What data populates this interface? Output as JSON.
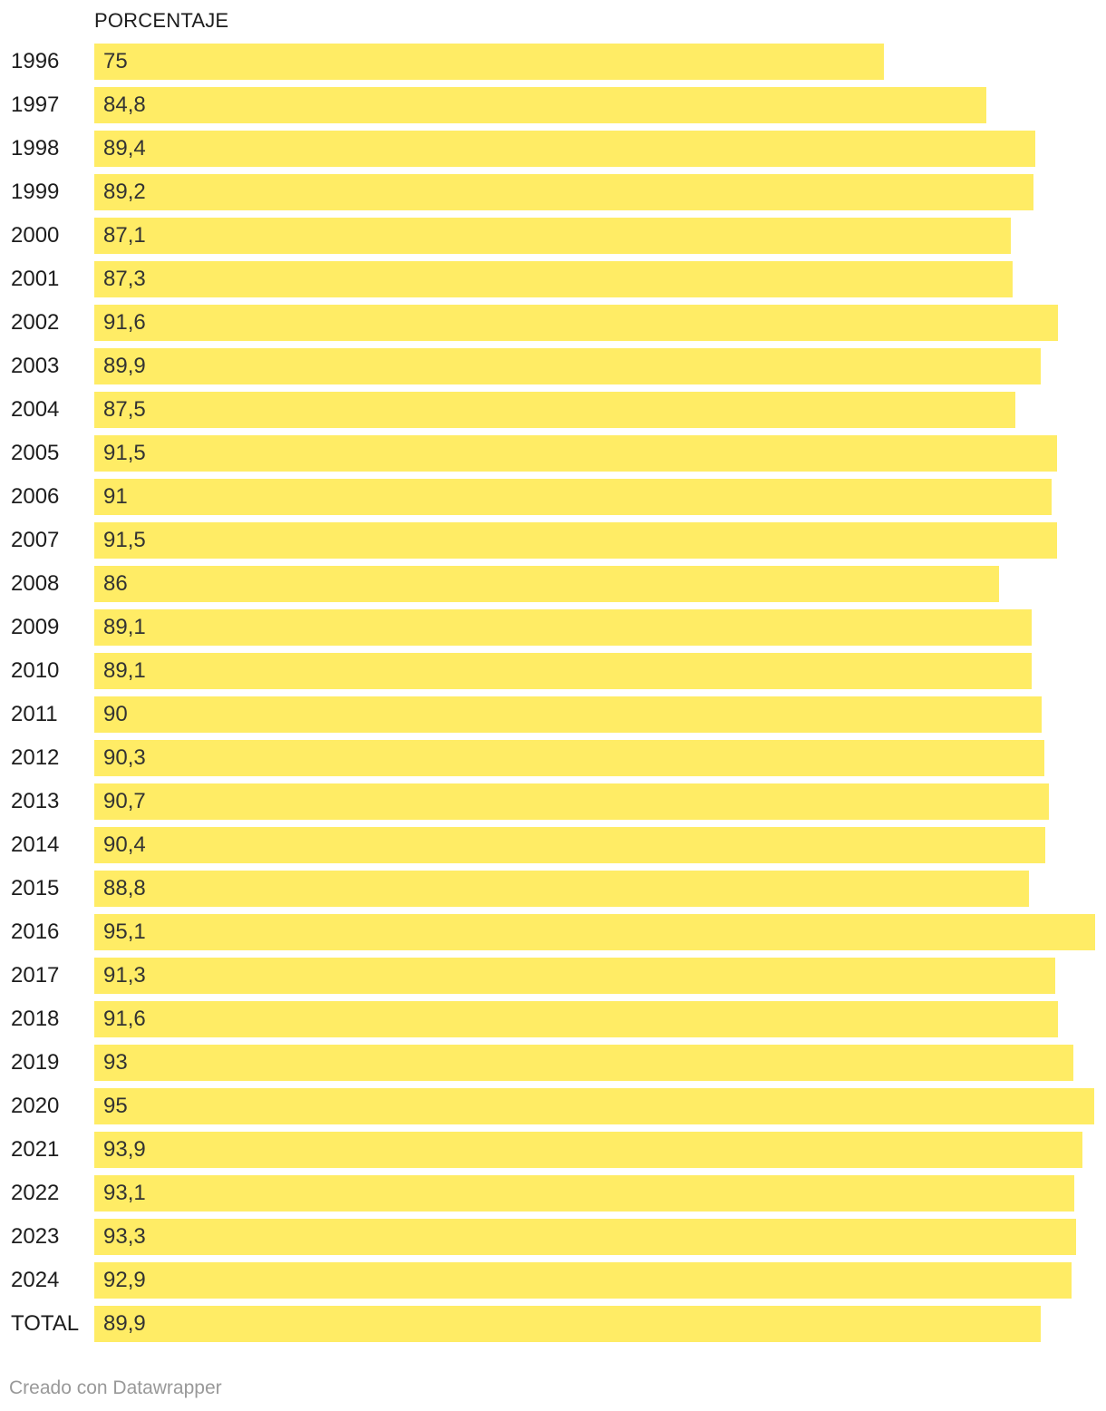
{
  "chart_data": {
    "type": "bar",
    "orientation": "horizontal",
    "column_header": "PORCENTAJE",
    "categories": [
      "1996",
      "1997",
      "1998",
      "1999",
      "2000",
      "2001",
      "2002",
      "2003",
      "2004",
      "2005",
      "2006",
      "2007",
      "2008",
      "2009",
      "2010",
      "2011",
      "2012",
      "2013",
      "2014",
      "2015",
      "2016",
      "2017",
      "2018",
      "2019",
      "2020",
      "2021",
      "2022",
      "2023",
      "2024",
      "TOTAL"
    ],
    "values": [
      75,
      84.8,
      89.4,
      89.2,
      87.1,
      87.3,
      91.6,
      89.9,
      87.5,
      91.5,
      91,
      91.5,
      86,
      89.1,
      89.1,
      90,
      90.3,
      90.7,
      90.4,
      88.8,
      95.1,
      91.3,
      91.6,
      93,
      95,
      93.9,
      93.1,
      93.3,
      92.9,
      89.9
    ],
    "value_labels": [
      "75",
      "84,8",
      "89,4",
      "89,2",
      "87,1",
      "87,3",
      "91,6",
      "89,9",
      "87,5",
      "91,5",
      "91",
      "91,5",
      "86",
      "89,1",
      "89,1",
      "90",
      "90,3",
      "90,7",
      "90,4",
      "88,8",
      "95,1",
      "91,3",
      "91,6",
      "93",
      "95",
      "93,9",
      "93,1",
      "93,3",
      "92,9",
      "89,9"
    ],
    "xlim": [
      0,
      95.1
    ],
    "bar_color": "#ffec65",
    "grid": false
  },
  "footer": {
    "credit": "Creado con Datawrapper"
  }
}
